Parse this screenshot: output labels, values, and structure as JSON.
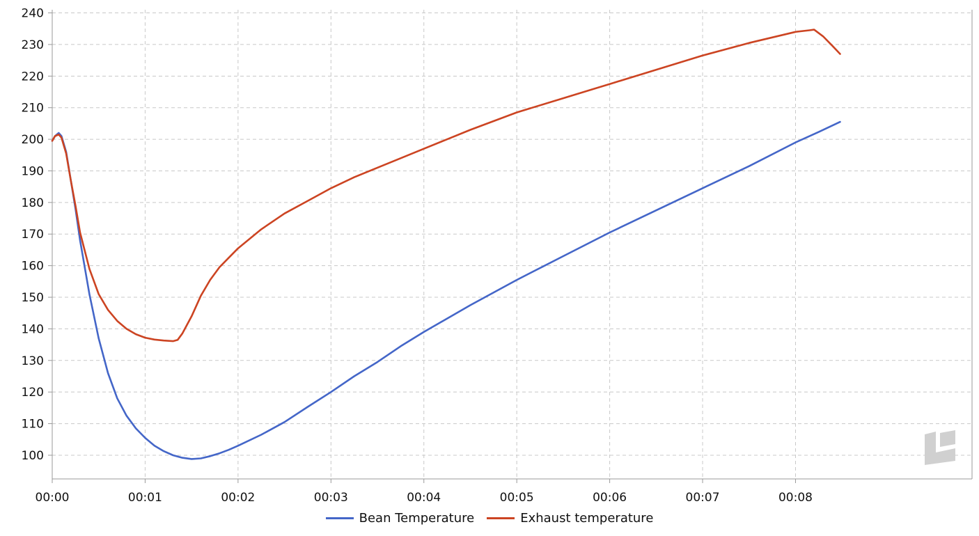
{
  "colors": {
    "bean": "#4466c8",
    "exhaust": "#cc4422",
    "grid": "#c8c8c8",
    "axis": "#999999",
    "logo": "#d0d0d0"
  },
  "logo": {
    "icon": "watermark-logo-icon"
  },
  "chart_data": {
    "type": "line",
    "title": "",
    "xlabel": "",
    "ylabel": "",
    "x_unit": "minutes",
    "xlim": [
      0,
      9.9
    ],
    "ylim": [
      92.5,
      241
    ],
    "grid": true,
    "legend_position": "bottom-center",
    "x_ticks": [
      {
        "value": 0,
        "label": "00:00"
      },
      {
        "value": 1,
        "label": "00:01"
      },
      {
        "value": 2,
        "label": "00:02"
      },
      {
        "value": 3,
        "label": "00:03"
      },
      {
        "value": 4,
        "label": "00:04"
      },
      {
        "value": 5,
        "label": "00:05"
      },
      {
        "value": 6,
        "label": "00:06"
      },
      {
        "value": 7,
        "label": "00:07"
      },
      {
        "value": 8,
        "label": "00:08"
      }
    ],
    "y_ticks": [
      {
        "value": 100,
        "label": "100"
      },
      {
        "value": 110,
        "label": "110"
      },
      {
        "value": 120,
        "label": "120"
      },
      {
        "value": 130,
        "label": "130"
      },
      {
        "value": 140,
        "label": "140"
      },
      {
        "value": 150,
        "label": "150"
      },
      {
        "value": 160,
        "label": "160"
      },
      {
        "value": 170,
        "label": "170"
      },
      {
        "value": 180,
        "label": "180"
      },
      {
        "value": 190,
        "label": "190"
      },
      {
        "value": 200,
        "label": "200"
      },
      {
        "value": 210,
        "label": "210"
      },
      {
        "value": 220,
        "label": "220"
      },
      {
        "value": 230,
        "label": "230"
      },
      {
        "value": 240,
        "label": "240"
      }
    ],
    "series": [
      {
        "name": "Bean Temperature",
        "color": "#4466c8",
        "x": [
          0,
          0.03,
          0.07,
          0.1,
          0.15,
          0.2,
          0.25,
          0.3,
          0.4,
          0.5,
          0.6,
          0.7,
          0.8,
          0.9,
          1.0,
          1.1,
          1.2,
          1.3,
          1.4,
          1.5,
          1.6,
          1.7,
          1.8,
          1.9,
          2.0,
          2.25,
          2.5,
          2.75,
          3.0,
          3.25,
          3.5,
          3.75,
          4.0,
          4.5,
          5.0,
          5.5,
          6.0,
          6.5,
          7.0,
          7.5,
          8.0,
          8.25,
          8.48
        ],
        "y": [
          199.5,
          201,
          202,
          201,
          196,
          187,
          178,
          168,
          151,
          137,
          126,
          118,
          112.5,
          108.5,
          105.5,
          103,
          101.3,
          100,
          99.2,
          98.8,
          99,
          99.7,
          100.6,
          101.7,
          103,
          106.5,
          110.5,
          115.3,
          120,
          125,
          129.5,
          134.5,
          139,
          147.5,
          155.5,
          163,
          170.5,
          177.5,
          184.5,
          191.5,
          199,
          202.3,
          205.5
        ]
      },
      {
        "name": "Exhaust temperature",
        "color": "#cc4422",
        "x": [
          0,
          0.03,
          0.07,
          0.1,
          0.15,
          0.2,
          0.25,
          0.3,
          0.4,
          0.5,
          0.6,
          0.7,
          0.8,
          0.9,
          1.0,
          1.1,
          1.2,
          1.3,
          1.35,
          1.4,
          1.5,
          1.6,
          1.7,
          1.8,
          1.9,
          2.0,
          2.25,
          2.5,
          2.75,
          3.0,
          3.25,
          3.5,
          3.75,
          4.0,
          4.5,
          5.0,
          5.5,
          6.0,
          6.5,
          7.0,
          7.5,
          8.0,
          8.15,
          8.2,
          8.3,
          8.4,
          8.48
        ],
        "y": [
          199.5,
          201,
          201.5,
          200.5,
          195.5,
          187,
          179,
          170.5,
          159,
          151,
          146,
          142.5,
          140,
          138.3,
          137.2,
          136.6,
          136.3,
          136.1,
          136.5,
          138.5,
          144,
          150.5,
          155.5,
          159.5,
          162.5,
          165.5,
          171.5,
          176.5,
          180.5,
          184.5,
          188,
          191,
          194,
          197,
          203,
          208.5,
          213,
          217.5,
          222,
          226.5,
          230.5,
          234,
          234.5,
          234.7,
          232.5,
          229.5,
          227
        ]
      }
    ]
  }
}
